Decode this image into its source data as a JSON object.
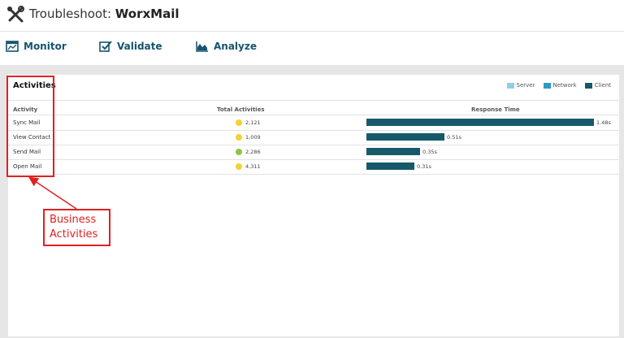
{
  "header": {
    "title_prefix": "Troubleshoot:",
    "title_app": "WorxMail"
  },
  "nav": {
    "monitor": "Monitor",
    "validate": "Validate",
    "analyze": "Analyze"
  },
  "activities": {
    "title": "Activities",
    "legend": [
      {
        "label": "Server",
        "color": "#8fcfe3"
      },
      {
        "label": "Network",
        "color": "#2a9cc0"
      },
      {
        "label": "Client",
        "color": "#16596b"
      }
    ],
    "columns": {
      "activity": "Activity",
      "total": "Total Activities",
      "response": "Response Time"
    },
    "response_max": 1.48,
    "rows": [
      {
        "name": "Sync Mail",
        "total": "2,121",
        "status_color": "#f5d033",
        "response": 1.48,
        "response_label": "1.48s"
      },
      {
        "name": "View Contact",
        "total": "1,009",
        "status_color": "#f5d033",
        "response": 0.51,
        "response_label": "0.51s"
      },
      {
        "name": "Send Mail",
        "total": "2,286",
        "status_color": "#8cc63f",
        "response": 0.35,
        "response_label": "0.35s"
      },
      {
        "name": "Open Mail",
        "total": "4,311",
        "status_color": "#f5d033",
        "response": 0.31,
        "response_label": "0.31s"
      }
    ]
  },
  "annotation": {
    "line1": "Business",
    "line2": "Activities",
    "color": "#e02020"
  }
}
